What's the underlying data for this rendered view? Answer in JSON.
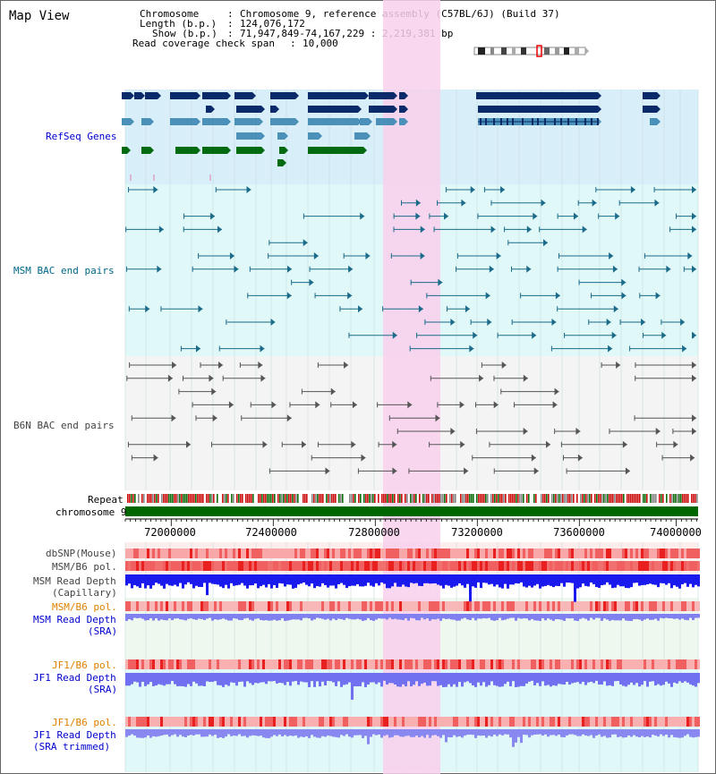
{
  "window": {
    "title": "Map View"
  },
  "info": {
    "chromosome_label": "Chromosome",
    "chromosome_value": "Chromosome 9, reference assembly (C57BL/6J) (Build 37)",
    "length_label": "Length (b.p.)",
    "length_value": "124,076,172",
    "show_label": "Show (b.p.)",
    "show_value": "71,947,849-74,167,229 : 2,219,381 bp",
    "coverage_label": "Read coverage check span",
    "coverage_value": "10,000"
  },
  "tracks": {
    "refseq": "RefSeq Genes",
    "msm_bac": "MSM BAC end pairs",
    "b6n_bac": "B6N BAC end pairs",
    "repeat": "Repeat",
    "chromosome": "chromosome 9",
    "dbsnp": "dbSNP(Mouse)",
    "msm_b6_pol_1": "MSM/B6 pol.",
    "msm_read_depth_cap_1": "MSM Read Depth",
    "msm_read_depth_cap_2": "(Capillary)",
    "msm_b6_pol_2": "MSM/B6 pol.",
    "msm_read_depth_sra_1": "MSM Read Depth",
    "msm_read_depth_sra_2": "(SRA)",
    "jf1_b6_pol_1": "JF1/B6 pol.",
    "jf1_read_depth_sra_1": "JF1 Read Depth",
    "jf1_read_depth_sra_2": "(SRA)",
    "jf1_b6_pol_2": "JF1/B6 pol.",
    "jf1_read_depth_trim_1": "JF1 Read Depth",
    "jf1_read_depth_trim_2": "(SRA trimmed)"
  },
  "axis": {
    "ticks": [
      "72000000",
      "72400000",
      "72800000",
      "73200000",
      "73600000",
      "74000000"
    ]
  },
  "colors": {
    "highlight": "#f8d8f0",
    "refseq_bg": "#d8eef8",
    "msm_bg": "#e0f8f8",
    "b6n_bg": "#f4f4f4",
    "refseq_label": "#0000cc",
    "msm_label": "#006688",
    "b6n_label": "#444444",
    "orange_label": "#e08000",
    "blue_label": "#0000cc",
    "chromosome_bar": "#006600"
  }
}
